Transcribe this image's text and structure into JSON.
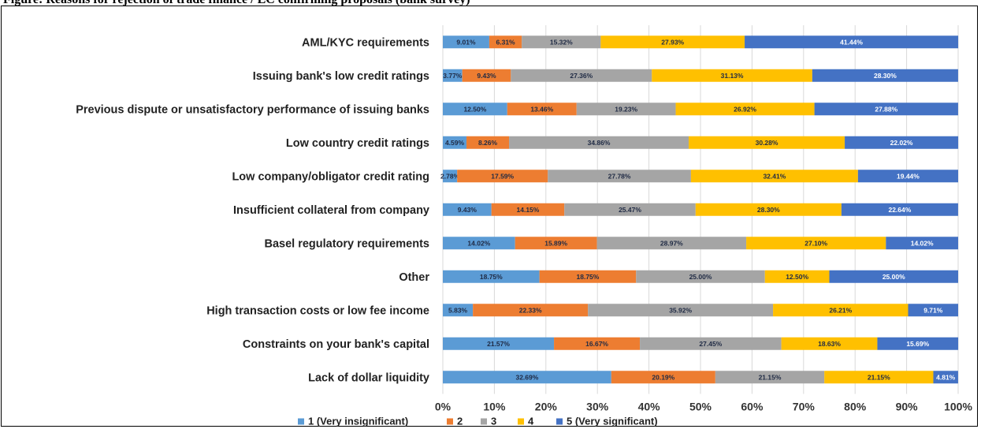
{
  "figure": {
    "title_text": "Figure: Reasons for rejection of trade finance / LC confirming proposals (bank survey)"
  },
  "colors": {
    "series": [
      "#5B9BD5",
      "#ED7D31",
      "#A5A5A5",
      "#FFC000",
      "#4472C4"
    ],
    "grid": "#d9d9d9",
    "label_dark": "#1f2a44",
    "label_light": "#ffffff"
  },
  "chart_data": {
    "type": "bar",
    "orientation": "horizontal",
    "stacked": "100%",
    "categories": [
      "AML/KYC requirements",
      "Issuing bank's low credit ratings",
      "Previous dispute or unsatisfactory performance of issuing banks",
      "Low country credit ratings",
      "Low company/obligator credit rating",
      "Insufficient collateral from company",
      "Basel regulatory requirements",
      "Other",
      "High transaction costs or low fee income",
      "Constraints on your bank's capital",
      "Lack of dollar liquidity"
    ],
    "series": [
      {
        "name": "1 (Very insignificant)",
        "values": [
          9.01,
          3.77,
          12.5,
          4.59,
          2.78,
          9.43,
          14.02,
          18.75,
          5.83,
          21.57,
          32.69
        ],
        "labels": [
          "9.01%",
          "3.77%",
          "12.50%",
          "4.59%",
          "2.78%",
          "9.43%",
          "14.02%",
          "18.75%",
          "5.83%",
          "21.57%",
          "32.69%"
        ]
      },
      {
        "name": "2",
        "values": [
          6.31,
          9.43,
          13.46,
          8.26,
          17.59,
          14.15,
          15.89,
          18.75,
          22.33,
          16.67,
          20.19
        ],
        "labels": [
          "6.31%",
          "9.43%",
          "13.46%",
          "8.26%",
          "17.59%",
          "14.15%",
          "15.89%",
          "18.75%",
          "22.33%",
          "16.67%",
          "20.19%"
        ]
      },
      {
        "name": "3",
        "values": [
          15.32,
          27.36,
          19.23,
          34.86,
          27.78,
          25.47,
          28.97,
          25.0,
          35.92,
          27.45,
          21.15
        ],
        "labels": [
          "15.32%",
          "27.36%",
          "19.23%",
          "34.86%",
          "27.78%",
          "25.47%",
          "28.97%",
          "25.00%",
          "35.92%",
          "27.45%",
          "21.15%"
        ]
      },
      {
        "name": "4",
        "values": [
          27.93,
          31.13,
          26.92,
          30.28,
          32.41,
          28.3,
          27.1,
          12.5,
          26.21,
          18.63,
          21.15
        ],
        "labels": [
          "27.93%",
          "31.13%",
          "26.92%",
          "30.28%",
          "32.41%",
          "28.30%",
          "27.10%",
          "12.50%",
          "26.21%",
          "18.63%",
          "21.15%"
        ]
      },
      {
        "name": "5 (Very significant)",
        "values": [
          41.44,
          28.3,
          27.88,
          22.02,
          19.44,
          22.64,
          14.02,
          25.0,
          9.71,
          15.69,
          4.81
        ],
        "labels": [
          "41.44%",
          "28.30%",
          "27.88%",
          "22.02%",
          "19.44%",
          "22.64%",
          "14.02%",
          "25.00%",
          "9.71%",
          "15.69%",
          "4.81%"
        ]
      }
    ],
    "xlim": [
      0,
      100
    ],
    "xticks": [
      "0%",
      "10%",
      "20%",
      "30%",
      "40%",
      "50%",
      "60%",
      "70%",
      "80%",
      "90%",
      "100%"
    ],
    "grid": true,
    "legend_position": "bottom"
  }
}
